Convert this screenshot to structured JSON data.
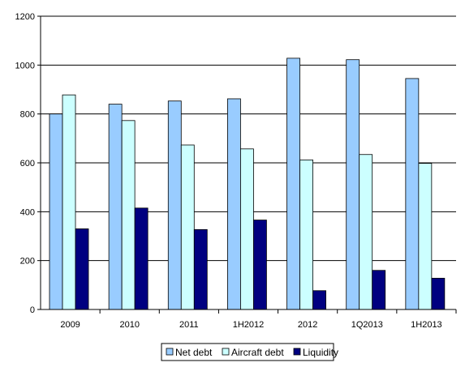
{
  "chart_data": {
    "type": "bar",
    "categories": [
      "2009",
      "2010",
      "2011",
      "1H2012",
      "2012",
      "1Q2013",
      "1H2013"
    ],
    "series": [
      {
        "name": "Net debt",
        "values": [
          800,
          840,
          853,
          862,
          1028,
          1022,
          945
        ],
        "color": "#99ccff"
      },
      {
        "name": "Aircraft debt",
        "values": [
          878,
          773,
          673,
          657,
          612,
          634,
          598
        ],
        "color": "#ccffff"
      },
      {
        "name": "Liquidity",
        "values": [
          330,
          415,
          327,
          366,
          77,
          160,
          128
        ],
        "color": "#000080"
      }
    ],
    "ylim": [
      0,
      1200
    ],
    "yticks": [
      "0",
      "200",
      "400",
      "600",
      "800",
      "1000",
      "1200"
    ],
    "grid": true,
    "legend_position": "bottom"
  }
}
